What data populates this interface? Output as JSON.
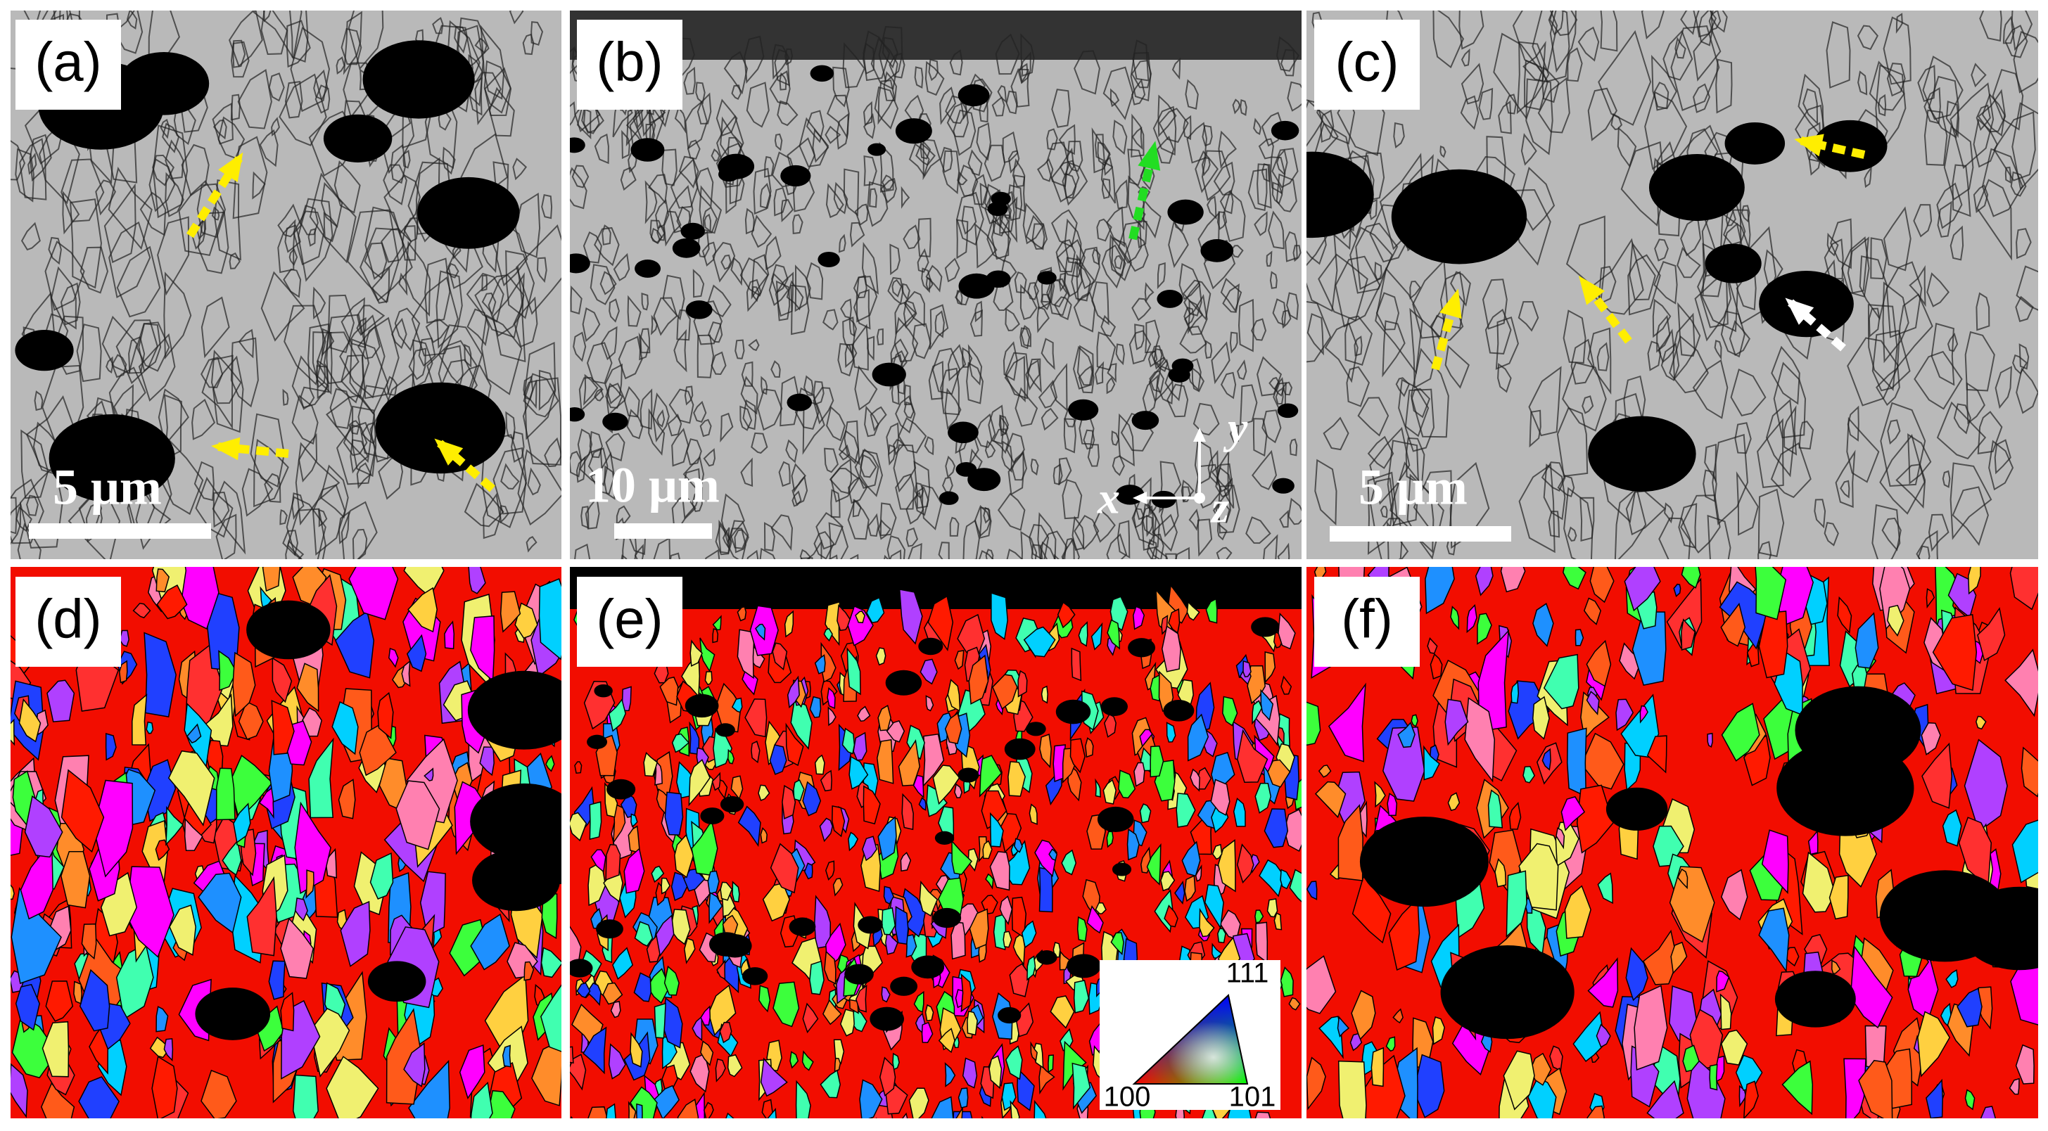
{
  "panels": [
    {
      "label": "(a)",
      "scale_bar": "5 μm"
    },
    {
      "label": "(b)",
      "scale_bar": "10 μm",
      "axes": {
        "x": "x",
        "y": "y",
        "z": "z"
      }
    },
    {
      "label": "(c)",
      "scale_bar": "5 μm"
    },
    {
      "label": "(d)"
    },
    {
      "label": "(e)",
      "ipf_legend": {
        "top": "111",
        "left": "100",
        "right": "101"
      }
    },
    {
      "label": "(f)"
    }
  ]
}
